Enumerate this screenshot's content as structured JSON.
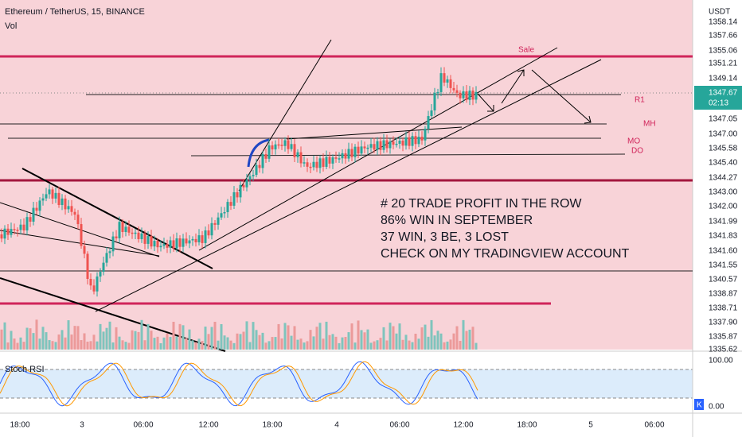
{
  "header": {
    "symbol": "Ethereum / TetherUS, 15, BINANCE",
    "volume": "Vol",
    "currency": "USDT"
  },
  "price_axis": [
    "1358.14",
    "1357.66",
    "1355.06",
    "1351.21",
    "1349.14",
    "1347.67",
    "1347.05",
    "1347.00",
    "1345.58",
    "1345.40",
    "1344.27",
    "1343.00",
    "1342.00",
    "1341.99",
    "1341.83",
    "1341.60",
    "1341.55",
    "1340.57",
    "1338.87",
    "1338.71",
    "1337.90",
    "1335.87",
    "1335.62"
  ],
  "countdown": "02:13",
  "time_axis": [
    "18:00",
    "3",
    "06:00",
    "12:00",
    "18:00",
    "4",
    "06:00",
    "12:00",
    "18:00",
    "5",
    "06:00"
  ],
  "levels": {
    "sale": "Sale",
    "r1": "R1",
    "mh": "MH",
    "mo": "MO",
    "do": "DO"
  },
  "note": [
    "# 20 TRADE PROFIT IN THE ROW",
    "86% WIN IN SEPTEMBER",
    "37 WIN, 3 BE, 3 LOST",
    "CHECK ON MY TRADINGVIEW  ACCOUNT"
  ],
  "stoch": {
    "title": "Stoch RSI",
    "top": "100.00",
    "bottom": "0.00",
    "tag": "K"
  }
}
